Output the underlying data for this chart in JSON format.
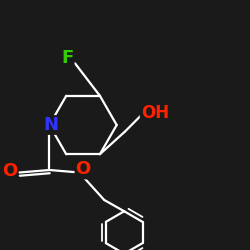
{
  "background_color": "#1a1a1a",
  "bond_color": "#ffffff",
  "atom_colors": {
    "F": "#33cc00",
    "N": "#3333ff",
    "O": "#ff2200",
    "C": "#ffffff"
  },
  "figsize": [
    2.5,
    2.5
  ],
  "dpi": 100,
  "lw": 1.6,
  "fontsize": 13
}
